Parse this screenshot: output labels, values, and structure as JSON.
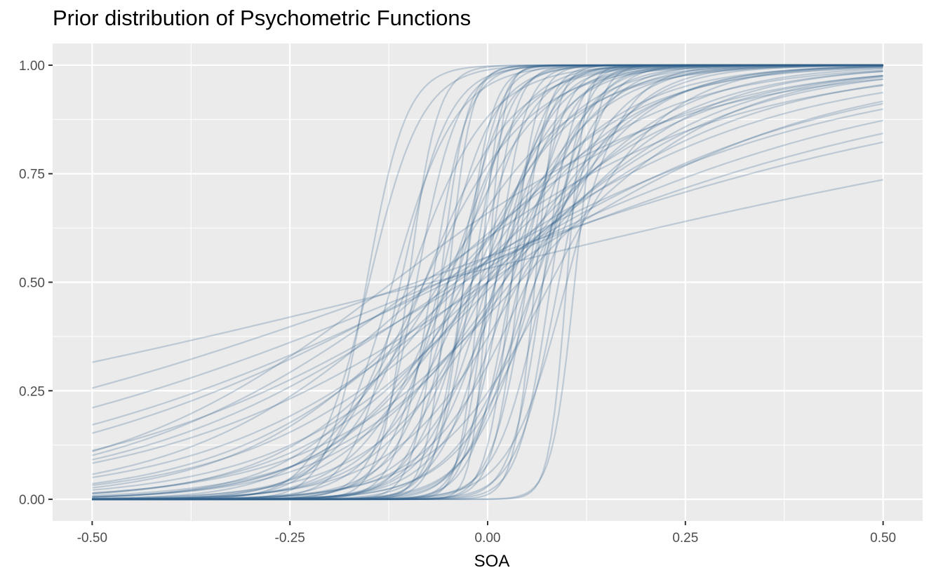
{
  "chart_data": {
    "type": "line",
    "title": "Prior distribution of Psychometric Functions",
    "xlabel": "SOA",
    "ylabel": "",
    "xlim": [
      -0.55,
      0.55
    ],
    "ylim": [
      -0.05,
      1.05
    ],
    "x_ticks": [
      -0.5,
      -0.25,
      0.0,
      0.25,
      0.5
    ],
    "x_tick_labels": [
      "-0.50",
      "-0.25",
      "0.00",
      "0.25",
      "0.50"
    ],
    "y_ticks": [
      0.0,
      0.25,
      0.5,
      0.75,
      1.0
    ],
    "y_tick_labels": [
      "0.00",
      "0.25",
      "0.50",
      "0.75",
      "1.00"
    ],
    "grid": true,
    "legend": "none",
    "line_color": "#2f5f8a",
    "line_opacity": 0.25,
    "panel_background": "#ebebeb",
    "grid_color": "#ffffff",
    "function": "logistic",
    "x_range": [
      -0.5,
      0.5
    ],
    "series": [
      {
        "alpha": -0.153,
        "beta": 40
      },
      {
        "alpha": -0.1,
        "beta": 55
      },
      {
        "alpha": -0.05,
        "beta": 70
      },
      {
        "alpha": 0.0,
        "beta": 60
      },
      {
        "alpha": 0.03,
        "beta": 65
      },
      {
        "alpha": 0.06,
        "beta": 75
      },
      {
        "alpha": 0.1,
        "beta": 90
      },
      {
        "alpha": 0.11,
        "beta": 70
      },
      {
        "alpha": -0.07,
        "beta": 45
      },
      {
        "alpha": -0.03,
        "beta": 50
      },
      {
        "alpha": 0.02,
        "beta": 40
      },
      {
        "alpha": 0.05,
        "beta": 45
      },
      {
        "alpha": 0.08,
        "beta": 50
      },
      {
        "alpha": -0.04,
        "beta": 35
      },
      {
        "alpha": 0.01,
        "beta": 30
      },
      {
        "alpha": -0.02,
        "beta": 28
      },
      {
        "alpha": 0.04,
        "beta": 32
      },
      {
        "alpha": 0.07,
        "beta": 35
      },
      {
        "alpha": -0.06,
        "beta": 30
      },
      {
        "alpha": 0.09,
        "beta": 38
      },
      {
        "alpha": -0.09,
        "beta": 38
      },
      {
        "alpha": -0.11,
        "beta": 33
      },
      {
        "alpha": 0.0,
        "beta": 25
      },
      {
        "alpha": 0.03,
        "beta": 22
      },
      {
        "alpha": -0.05,
        "beta": 22
      },
      {
        "alpha": 0.06,
        "beta": 25
      },
      {
        "alpha": 0.1,
        "beta": 28
      },
      {
        "alpha": -0.01,
        "beta": 20
      },
      {
        "alpha": 0.02,
        "beta": 18
      },
      {
        "alpha": -0.08,
        "beta": 18
      },
      {
        "alpha": 0.05,
        "beta": 16
      },
      {
        "alpha": 0.0,
        "beta": 15
      },
      {
        "alpha": -0.03,
        "beta": 14
      },
      {
        "alpha": 0.04,
        "beta": 13
      },
      {
        "alpha": -0.06,
        "beta": 12
      },
      {
        "alpha": 0.08,
        "beta": 14
      },
      {
        "alpha": -0.02,
        "beta": 11
      },
      {
        "alpha": 0.02,
        "beta": 10
      },
      {
        "alpha": -0.04,
        "beta": 9.5
      },
      {
        "alpha": 0.03,
        "beta": 9
      },
      {
        "alpha": 0.0,
        "beta": 8.5
      },
      {
        "alpha": -0.05,
        "beta": 8
      },
      {
        "alpha": 0.01,
        "beta": 7.5
      },
      {
        "alpha": -0.03,
        "beta": 7
      },
      {
        "alpha": 0.0,
        "beta": 6.8
      },
      {
        "alpha": -0.07,
        "beta": 6.5
      },
      {
        "alpha": -0.01,
        "beta": 6
      },
      {
        "alpha": -0.12,
        "beta": 5.5
      },
      {
        "alpha": -0.08,
        "beta": 5.2
      },
      {
        "alpha": -0.04,
        "beta": 5
      },
      {
        "alpha": 0.0,
        "beta": 4.8
      },
      {
        "alpha": -0.03,
        "beta": 4.4
      },
      {
        "alpha": -0.06,
        "beta": 3.9
      },
      {
        "alpha": -0.05,
        "beta": 3.5
      },
      {
        "alpha": -0.06,
        "beta": 3.0
      },
      {
        "alpha": -0.09,
        "beta": 2.6
      },
      {
        "alpha": -0.07,
        "beta": 1.8
      },
      {
        "alpha": -0.15,
        "beta": 30
      },
      {
        "alpha": -0.12,
        "beta": 25
      },
      {
        "alpha": -0.1,
        "beta": 20
      },
      {
        "alpha": -0.08,
        "beta": 15
      },
      {
        "alpha": -0.02,
        "beta": 45
      },
      {
        "alpha": 0.01,
        "beta": 55
      },
      {
        "alpha": 0.04,
        "beta": 60
      },
      {
        "alpha": 0.07,
        "beta": 50
      },
      {
        "alpha": -0.01,
        "beta": 80
      },
      {
        "alpha": 0.05,
        "beta": 28
      },
      {
        "alpha": 0.06,
        "beta": 20
      },
      {
        "alpha": -0.05,
        "beta": 18
      },
      {
        "alpha": 0.02,
        "beta": 12
      },
      {
        "alpha": -0.02,
        "beta": 16
      },
      {
        "alpha": 0.03,
        "beta": 42
      },
      {
        "alpha": -0.06,
        "beta": 60
      },
      {
        "alpha": 0.0,
        "beta": 100
      },
      {
        "alpha": 0.04,
        "beta": 7.8
      },
      {
        "alpha": -0.01,
        "beta": 10.5
      },
      {
        "alpha": 0.01,
        "beta": 24
      },
      {
        "alpha": -0.04,
        "beta": 26
      },
      {
        "alpha": 0.07,
        "beta": 19
      },
      {
        "alpha": -0.03,
        "beta": 58
      }
    ]
  }
}
